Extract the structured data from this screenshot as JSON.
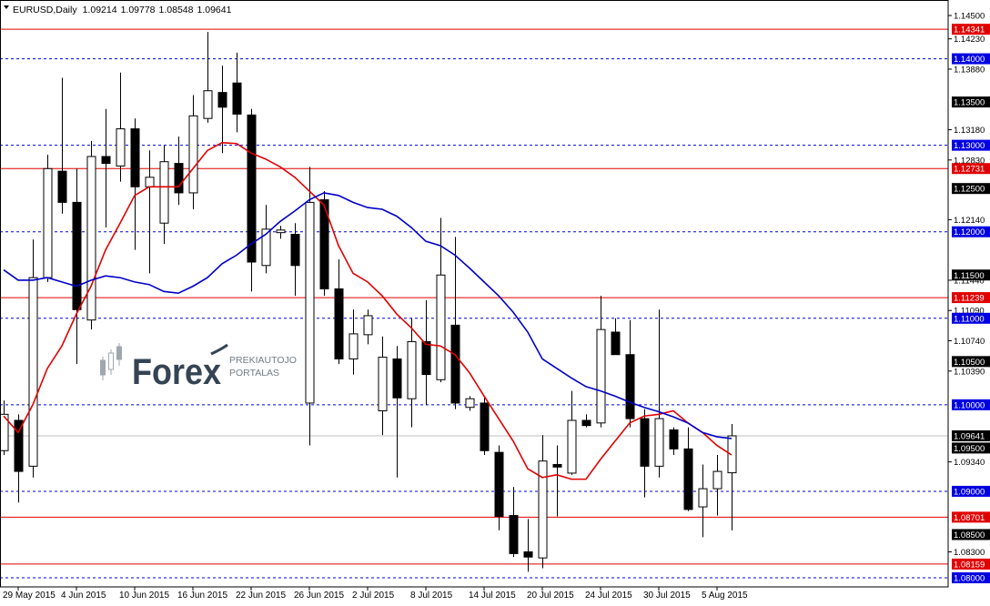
{
  "chart_data": {
    "type": "candlestick",
    "title": "EURUSD,Daily",
    "ohlc_header": [
      1.09214,
      1.09778,
      1.08548,
      1.09641
    ],
    "categories": [
      null,
      "29 May 2015",
      null,
      null,
      null,
      "4 Jun 2015",
      null,
      null,
      null,
      "10 Jun 2015",
      null,
      null,
      null,
      "16 Jun 2015",
      null,
      null,
      null,
      "22 Jun 2015",
      null,
      null,
      null,
      "26 Jun 2015",
      null,
      null,
      null,
      "2 Jul 2015",
      null,
      null,
      null,
      "8 Jul 2015",
      null,
      null,
      null,
      "14 Jul 2015",
      null,
      null,
      null,
      "20 Jul 2015",
      null,
      null,
      null,
      "24 Jul 2015",
      null,
      null,
      null,
      "30 Jul 2015",
      null,
      null,
      null,
      "5 Aug 2015",
      null
    ],
    "open": [
      1.0947,
      1.0982,
      1.0929,
      1.1147,
      1.127,
      1.1234,
      1.1098,
      1.1287,
      1.1276,
      1.1319,
      1.1252,
      1.121,
      1.1279,
      1.1245,
      1.1331,
      1.1361,
      1.1372,
      1.1335,
      1.1161,
      1.1199,
      1.1197,
      1.1002,
      1.1237,
      1.1134,
      1.1053,
      1.1081,
      1.0993,
      1.1053,
      1.1007,
      1.1073,
      1.1029,
      1.1092,
      1.0997,
      1.1002,
      1.0945,
      1.0872,
      1.083,
      1.0823,
      1.0931,
      1.0921,
      1.0982,
      1.0979,
      1.1084,
      1.1058,
      1.0984,
      1.0929,
      1.0971,
      1.0949,
      1.0882,
      1.0903,
      1.09214
    ],
    "high": [
      1.1005,
      1.0989,
      1.1191,
      1.1289,
      1.1378,
      1.1273,
      1.1305,
      1.1342,
      1.1384,
      1.1331,
      1.1294,
      1.13,
      1.131,
      1.1358,
      1.1431,
      1.1392,
      1.1407,
      1.1342,
      1.1231,
      1.1207,
      1.121,
      1.1275,
      1.1247,
      1.1168,
      1.111,
      1.111,
      1.1079,
      1.1068,
      1.11,
      1.1121,
      1.1216,
      1.1194,
      1.101,
      1.101,
      1.0953,
      1.0905,
      1.0868,
      1.0965,
      1.0953,
      1.1016,
      1.0989,
      1.1126,
      1.11,
      1.1098,
      1.0995,
      1.111,
      1.0974,
      1.0974,
      1.0931,
      1.0942,
      1.09778
    ],
    "low": [
      1.0942,
      1.0887,
      1.0916,
      1.1142,
      1.1221,
      1.1047,
      1.1087,
      1.1205,
      1.1258,
      1.1179,
      1.1152,
      1.1186,
      1.1231,
      1.1226,
      1.1326,
      1.1291,
      1.1315,
      1.1131,
      1.1152,
      1.1192,
      1.1126,
      1.0953,
      1.1126,
      1.1047,
      1.1035,
      1.107,
      1.0965,
      1.0916,
      1.0974,
      1.1,
      1.1026,
      1.0995,
      1.0993,
      1.0942,
      1.0855,
      1.0824,
      1.0807,
      1.0811,
      1.0871,
      1.0919,
      1.0974,
      1.0974,
      1.1058,
      1.0974,
      1.0893,
      1.0916,
      1.0942,
      1.0877,
      1.0847,
      1.0872,
      1.08548
    ],
    "close": [
      1.0989,
      1.0923,
      1.1147,
      1.1273,
      1.1234,
      1.111,
      1.1287,
      1.1279,
      1.1319,
      1.1252,
      1.1263,
      1.1281,
      1.1245,
      1.1334,
      1.1363,
      1.1344,
      1.1336,
      1.1165,
      1.1203,
      1.1202,
      1.1161,
      1.1234,
      1.1134,
      1.1053,
      1.1082,
      1.1103,
      1.1055,
      1.1008,
      1.1073,
      1.1035,
      1.115,
      1.1002,
      1.1007,
      1.0947,
      1.0871,
      1.0828,
      1.0824,
      1.0935,
      1.0928,
      1.0982,
      1.0976,
      1.1087,
      1.1058,
      1.0984,
      1.0929,
      1.0984,
      1.0949,
      1.0879,
      1.0903,
      1.0923,
      1.09641
    ],
    "bull_color": "#ffffff",
    "bear_color": "#000000",
    "overlays": [
      {
        "color": "#e00000",
        "values": [
          1.0987,
          1.0968,
          1.1,
          1.1042,
          1.1068,
          1.1105,
          1.1137,
          1.1179,
          1.121,
          1.1242,
          1.1252,
          1.1252,
          1.1252,
          1.1273,
          1.1294,
          1.1303,
          1.1302,
          1.1291,
          1.1284,
          1.1275,
          1.1263,
          1.1247,
          1.1231,
          1.1184,
          1.1152,
          1.1142,
          1.1126,
          1.1105,
          1.1089,
          1.107,
          1.1068,
          1.1058,
          1.1037,
          1.101,
          1.0984,
          1.0958,
          1.0926,
          1.0916,
          1.0919,
          1.0914,
          1.0914,
          1.0937,
          1.0958,
          1.0979,
          1.0987,
          1.0989,
          1.0993,
          1.0979,
          1.0968,
          1.0953,
          1.0942
        ]
      },
      {
        "color": "#0000c8",
        "values": [
          1.1156,
          1.1144,
          1.1144,
          1.1147,
          1.1142,
          1.1137,
          1.1144,
          1.1149,
          1.1147,
          1.1142,
          1.1139,
          1.1131,
          1.1129,
          1.1137,
          1.1147,
          1.1163,
          1.1173,
          1.1186,
          1.1197,
          1.1212,
          1.1224,
          1.1237,
          1.1245,
          1.1242,
          1.1234,
          1.1228,
          1.1226,
          1.1218,
          1.1205,
          1.1189,
          1.1184,
          1.1173,
          1.1158,
          1.1142,
          1.1126,
          1.1107,
          1.1084,
          1.1053,
          1.1042,
          1.1031,
          1.1021,
          1.1016,
          1.101,
          1.1003,
          1.0997,
          1.0992,
          1.0986,
          1.0979,
          1.0968,
          1.0963,
          1.0961
        ]
      }
    ],
    "ylim": [
      1.07895,
      1.14595
    ],
    "yticks": [
      {
        "value": 1.145,
        "label": "1.14500"
      },
      {
        "value": 1.1423,
        "label": "1.14230"
      },
      {
        "value": 1.1388,
        "label": "1.13880"
      },
      {
        "value": 1.1318,
        "label": "1.13180"
      },
      {
        "value": 1.1283,
        "label": "1.12830"
      },
      {
        "value": 1.1214,
        "label": "1.12140"
      },
      {
        "value": 1.1144,
        "label": "1.11440"
      },
      {
        "value": 1.1109,
        "label": "1.11090"
      },
      {
        "value": 1.1074,
        "label": "1.10740"
      },
      {
        "value": 1.1039,
        "label": "1.10390"
      },
      {
        "value": 1.0934,
        "label": "1.09340"
      },
      {
        "value": 1.083,
        "label": "1.08300"
      }
    ],
    "level_groups": [
      {
        "color": "#e00000",
        "line": "solid",
        "values": [
          1.14341,
          1.12731,
          1.11239,
          1.08701,
          1.08159
        ]
      },
      {
        "color": "#0000e0",
        "line": "dashed",
        "values": [
          {
            "value": 1.14,
            "label": "1.14000"
          },
          {
            "value": 1.13,
            "label": "1.13000"
          },
          {
            "value": 1.12,
            "label": "1.12000"
          },
          {
            "value": 1.11,
            "label": "1.11000"
          },
          {
            "value": 1.1,
            "label": "1.10000"
          },
          {
            "value": 1.09,
            "label": "1.09000"
          },
          {
            "value": 1.08,
            "label": "1.08000"
          }
        ]
      },
      {
        "color": "#000000",
        "line": "none",
        "values": [
          {
            "value": 1.135,
            "label": "1.13500"
          },
          {
            "value": 1.125,
            "label": "1.12500"
          },
          {
            "value": 1.115,
            "label": "1.11500"
          },
          {
            "value": 1.105,
            "label": "1.10500"
          },
          {
            "value": 1.095,
            "label": "1.09500"
          },
          {
            "value": 1.085,
            "label": "1.08500"
          }
        ]
      },
      {
        "color": "#000000",
        "line": "thin",
        "line_color": "#c0c0c0",
        "values": [
          1.09641
        ]
      }
    ],
    "watermark": {
      "brand": "Forex",
      "tagline_1": "PREKIAUTOJO",
      "tagline_2": "PORTALAS"
    }
  }
}
